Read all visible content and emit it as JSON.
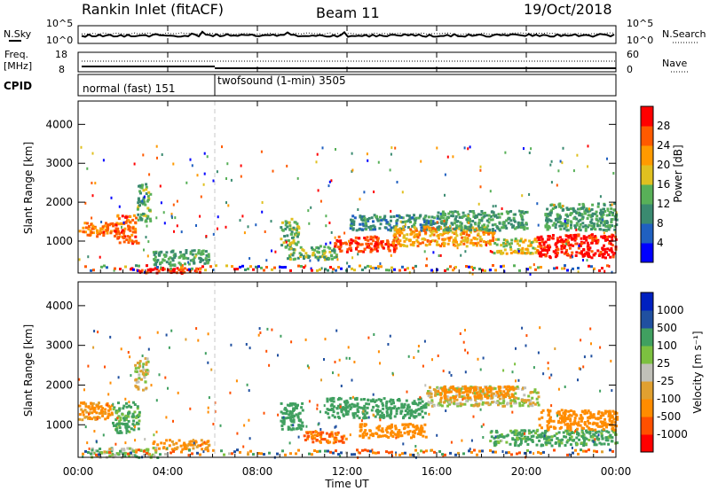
{
  "header": {
    "station": "Rankin Inlet (fitACF)",
    "beam": "Beam 11",
    "date": "19/Oct/2018"
  },
  "noise_panel": {
    "left_label": "N.Sky",
    "right_label": "N.Search",
    "tick_top": "10^5",
    "tick_bottom": "10^0",
    "right_tick_top": "10^5",
    "right_tick_bottom": "10^0"
  },
  "freq_panel": {
    "left_label_1": "Freq.",
    "left_label_2": "[MHz]",
    "right_label": "Nave",
    "tick_top": "18",
    "tick_bottom": "8",
    "right_tick_top": "60",
    "right_tick_bottom": "0"
  },
  "cpid_panel": {
    "label": "CPID",
    "mode_1": "normal (fast) 151",
    "mode_2": "twofsound (1-min) 3505"
  },
  "power_panel": {
    "ylabel": "Slant Range [km]",
    "yticks": [
      "1000",
      "2000",
      "3000",
      "4000"
    ],
    "colorbar_label": "Power [dB]",
    "colorbar_ticks": [
      "4",
      "8",
      "12",
      "16",
      "20",
      "24",
      "28"
    ]
  },
  "velocity_panel": {
    "ylabel": "Slant Range [km]",
    "yticks": [
      "1000",
      "2000",
      "3000",
      "4000"
    ],
    "colorbar_label": "Velocity [m s⁻¹]",
    "colorbar_ticks": [
      "1000",
      "500",
      "100",
      "25",
      "-25",
      "-100",
      "-500",
      "-1000"
    ]
  },
  "x_axis": {
    "label": "Time UT",
    "ticks": [
      "00:00",
      "04:00",
      "08:00",
      "12:00",
      "16:00",
      "20:00",
      "00:00"
    ]
  },
  "colors": {
    "power_scale": [
      "#0000ff",
      "#2060c0",
      "#3a8a70",
      "#58b058",
      "#e0c020",
      "#ff9a00",
      "#ff5a00",
      "#ff0000"
    ],
    "velocity_scale": [
      "#ff0000",
      "#ff5000",
      "#ff8c00",
      "#e0a030",
      "#c0c0b8",
      "#7cc040",
      "#40a060",
      "#2050a0",
      "#0020c0"
    ]
  },
  "chart_data": [
    {
      "type": "heatmap",
      "title": "Power",
      "xlabel": "Time UT",
      "ylabel": "Slant Range [km]",
      "x_range_hours": [
        0,
        24
      ],
      "ylim": [
        180,
        4600
      ],
      "zlabel": "Power [dB]",
      "zlim": [
        0,
        32
      ],
      "scatter_regions": [
        {
          "t0": 0.0,
          "t1": 1.6,
          "r0": 1150,
          "r1": 1500,
          "z": 24
        },
        {
          "t0": 1.6,
          "t1": 2.6,
          "r0": 950,
          "r1": 1700,
          "z": 26
        },
        {
          "t0": 2.6,
          "t1": 3.2,
          "r0": 1500,
          "r1": 2500,
          "z": 14
        },
        {
          "t0": 2.3,
          "t1": 5.4,
          "r0": 200,
          "r1": 350,
          "z": 28
        },
        {
          "t0": 3.3,
          "t1": 5.8,
          "r0": 400,
          "r1": 800,
          "z": 12
        },
        {
          "t0": 9.2,
          "t1": 11.5,
          "r0": 550,
          "r1": 900,
          "z": 14
        },
        {
          "t0": 9.0,
          "t1": 9.8,
          "r0": 900,
          "r1": 1600,
          "z": 14
        },
        {
          "t0": 11.4,
          "t1": 14.2,
          "r0": 750,
          "r1": 1150,
          "z": 28
        },
        {
          "t0": 12.0,
          "t1": 16.0,
          "r0": 1300,
          "r1": 1700,
          "z": 10
        },
        {
          "t0": 14.0,
          "t1": 18.5,
          "r0": 900,
          "r1": 1400,
          "z": 22
        },
        {
          "t0": 16.0,
          "t1": 20.0,
          "r0": 1300,
          "r1": 1800,
          "z": 12
        },
        {
          "t0": 18.5,
          "t1": 20.5,
          "r0": 700,
          "r1": 1100,
          "z": 18
        },
        {
          "t0": 20.4,
          "t1": 24.0,
          "r0": 600,
          "r1": 1200,
          "z": 30
        },
        {
          "t0": 20.8,
          "t1": 24.0,
          "r0": 1300,
          "r1": 2000,
          "z": 12
        }
      ]
    },
    {
      "type": "heatmap",
      "title": "Velocity",
      "xlabel": "Time UT",
      "ylabel": "Slant Range [km]",
      "x_range_hours": [
        0,
        24
      ],
      "ylim": [
        180,
        4600
      ],
      "zlabel": "Velocity [m s-1]",
      "zlim": [
        -1000,
        1000
      ],
      "scatter_regions": [
        {
          "t0": 0.0,
          "t1": 1.5,
          "r0": 1150,
          "r1": 1600,
          "z": -150
        },
        {
          "t0": 1.5,
          "t1": 2.7,
          "r0": 800,
          "r1": 1600,
          "z": 150
        },
        {
          "t0": 2.5,
          "t1": 3.1,
          "r0": 1900,
          "r1": 2700,
          "z": 0
        },
        {
          "t0": 3.3,
          "t1": 5.8,
          "r0": 400,
          "r1": 650,
          "z": -150
        },
        {
          "t0": 0.5,
          "t1": 3.5,
          "r0": 200,
          "r1": 450,
          "z": 50
        },
        {
          "t0": 9.0,
          "t1": 10.0,
          "r0": 900,
          "r1": 1600,
          "z": 200
        },
        {
          "t0": 10.0,
          "t1": 12.0,
          "r0": 550,
          "r1": 850,
          "z": -500
        },
        {
          "t0": 11.0,
          "t1": 15.5,
          "r0": 1200,
          "r1": 1700,
          "z": 200
        },
        {
          "t0": 12.5,
          "t1": 15.5,
          "r0": 700,
          "r1": 1050,
          "z": -400
        },
        {
          "t0": 15.5,
          "t1": 20.5,
          "r0": 1500,
          "r1": 2000,
          "z": 0
        },
        {
          "t0": 18.3,
          "t1": 24.0,
          "r0": 500,
          "r1": 900,
          "z": 150
        },
        {
          "t0": 20.5,
          "t1": 24.0,
          "r0": 900,
          "r1": 1400,
          "z": -300
        },
        {
          "t0": 16.0,
          "t1": 19.5,
          "r0": 1700,
          "r1": 2000,
          "z": -200
        }
      ]
    }
  ]
}
